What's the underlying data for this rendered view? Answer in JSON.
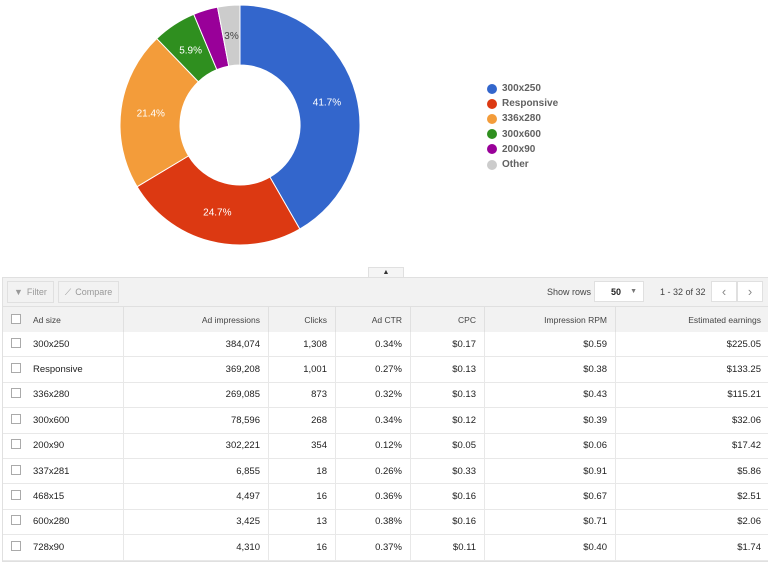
{
  "chart_data": {
    "type": "pie",
    "donut": true,
    "categories": [
      "300x250",
      "Responsive",
      "336x280",
      "300x600",
      "200x90",
      "Other"
    ],
    "values": [
      41.7,
      24.7,
      21.4,
      5.9,
      3.3,
      3
    ],
    "labels": [
      "41.7%",
      "24.7%",
      "21.4%",
      "5.9%",
      "",
      "3%"
    ],
    "colors": [
      "#3366cc",
      "#dc3912",
      "#f39c3a",
      "#2f8f1f",
      "#990099",
      "#cccccc"
    ],
    "legend_placement": "right"
  },
  "collapse_icon": "caret-up-icon",
  "toolbar": {
    "filter": "Filter",
    "compare": "Compare",
    "show_rows": "Show rows",
    "rows_value": "50",
    "pagination": "1 - 32 of 32"
  },
  "table": {
    "headers": [
      "Ad size",
      "Ad impressions",
      "Clicks",
      "Ad CTR",
      "CPC",
      "Impression RPM",
      "Estimated earnings"
    ],
    "rows": [
      [
        "300x250",
        "384,074",
        "1,308",
        "0.34%",
        "$0.17",
        "$0.59",
        "$225.05"
      ],
      [
        "Responsive",
        "369,208",
        "1,001",
        "0.27%",
        "$0.13",
        "$0.38",
        "$133.25"
      ],
      [
        "336x280",
        "269,085",
        "873",
        "0.32%",
        "$0.13",
        "$0.43",
        "$115.21"
      ],
      [
        "300x600",
        "78,596",
        "268",
        "0.34%",
        "$0.12",
        "$0.39",
        "$32.06"
      ],
      [
        "200x90",
        "302,221",
        "354",
        "0.12%",
        "$0.05",
        "$0.06",
        "$17.42"
      ],
      [
        "337x281",
        "6,855",
        "18",
        "0.26%",
        "$0.33",
        "$0.91",
        "$5.86"
      ],
      [
        "468x15",
        "4,497",
        "16",
        "0.36%",
        "$0.16",
        "$0.67",
        "$2.51"
      ],
      [
        "600x280",
        "3,425",
        "13",
        "0.38%",
        "$0.16",
        "$0.71",
        "$2.06"
      ],
      [
        "728x90",
        "4,310",
        "16",
        "0.37%",
        "$0.11",
        "$0.40",
        "$1.74"
      ]
    ]
  }
}
